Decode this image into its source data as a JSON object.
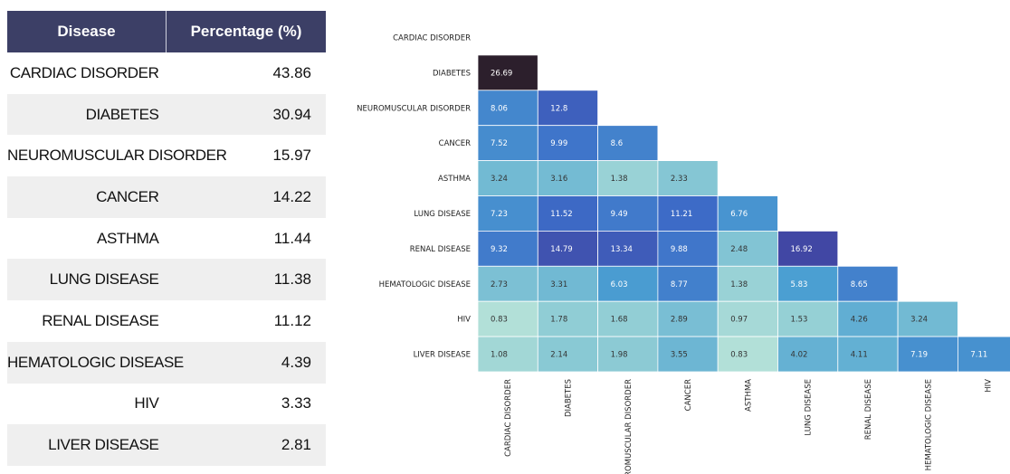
{
  "table": {
    "headers": {
      "disease": "Disease",
      "percentage": "Percentage (%)"
    },
    "rows": [
      {
        "disease": "CARDIAC DISORDER",
        "percentage": "43.86"
      },
      {
        "disease": "DIABETES",
        "percentage": "30.94"
      },
      {
        "disease": "NEUROMUSCULAR DISORDER",
        "percentage": "15.97"
      },
      {
        "disease": "CANCER",
        "percentage": "14.22"
      },
      {
        "disease": "ASTHMA",
        "percentage": "11.44"
      },
      {
        "disease": "LUNG DISEASE",
        "percentage": "11.38"
      },
      {
        "disease": "RENAL DISEASE",
        "percentage": "11.12"
      },
      {
        "disease": "HEMATOLOGIC DISEASE",
        "percentage": "4.39"
      },
      {
        "disease": "HIV",
        "percentage": "3.33"
      },
      {
        "disease": "LIVER DISEASE",
        "percentage": "2.81"
      }
    ],
    "colors": {
      "header_bg": "#3c3f66",
      "alt_row_bg": "#efefef"
    }
  },
  "chart_data": [
    {
      "type": "table",
      "columns": [
        "Disease",
        "Percentage (%)"
      ],
      "categories": [
        "CARDIAC DISORDER",
        "DIABETES",
        "NEUROMUSCULAR DISORDER",
        "CANCER",
        "ASTHMA",
        "LUNG DISEASE",
        "RENAL DISEASE",
        "HEMATOLOGIC DISEASE",
        "HIV",
        "LIVER DISEASE"
      ],
      "values": [
        43.86,
        30.94,
        15.97,
        14.22,
        11.44,
        11.38,
        11.12,
        4.39,
        3.33,
        2.81
      ]
    },
    {
      "type": "heatmap",
      "layout": "lower-triangle",
      "row_labels": [
        "CARDIAC DISORDER",
        "DIABETES",
        "NEUROMUSCULAR DISORDER",
        "CANCER",
        "ASTHMA",
        "LUNG DISEASE",
        "RENAL DISEASE",
        "HEMATOLOGIC DISEASE",
        "HIV",
        "LIVER DISEASE"
      ],
      "col_labels": [
        "CARDIAC DISORDER",
        "DIABETES",
        "NEUROMUSCULAR DISORDER",
        "CANCER",
        "ASTHMA",
        "LUNG DISEASE",
        "RENAL DISEASE",
        "HEMATOLOGIC DISEASE",
        "HIV"
      ],
      "values": [
        [],
        [
          26.69
        ],
        [
          8.06,
          12.8
        ],
        [
          7.52,
          9.99,
          8.6
        ],
        [
          3.24,
          3.16,
          1.38,
          2.33
        ],
        [
          7.23,
          11.52,
          9.49,
          11.21,
          6.76
        ],
        [
          9.32,
          14.79,
          13.34,
          9.88,
          2.48,
          16.92
        ],
        [
          2.73,
          3.31,
          6.03,
          8.77,
          1.38,
          5.83,
          8.65
        ],
        [
          0.83,
          1.78,
          1.68,
          2.89,
          0.97,
          1.53,
          4.26,
          3.24
        ],
        [
          1.08,
          2.14,
          1.98,
          3.55,
          0.83,
          4.02,
          4.11,
          7.19,
          7.11
        ]
      ],
      "value_labels": [
        [],
        [
          "26.69"
        ],
        [
          "8.06",
          "12.8"
        ],
        [
          "7.52",
          "9.99",
          "8.6"
        ],
        [
          "3.24",
          "3.16",
          "1.38",
          "2.33"
        ],
        [
          "7.23",
          "11.52",
          "9.49",
          "11.21",
          "6.76"
        ],
        [
          "9.32",
          "14.79",
          "13.34",
          "9.88",
          "2.48",
          "16.92"
        ],
        [
          "2.73",
          "3.31",
          "6.03",
          "8.77",
          "1.38",
          "5.83",
          "8.65"
        ],
        [
          "0.83",
          "1.78",
          "1.68",
          "2.89",
          "0.97",
          "1.53",
          "4.26",
          "3.24"
        ],
        [
          "1.08",
          "2.14",
          "1.98",
          "3.55",
          "0.83",
          "4.02",
          "4.11",
          "7.19",
          "7.11"
        ]
      ],
      "colormap": [
        "#b2e0d8",
        "#88c8d4",
        "#4ba0d2",
        "#3d6cc8",
        "#42409e",
        "#2c1f2c"
      ],
      "grid": false
    }
  ]
}
